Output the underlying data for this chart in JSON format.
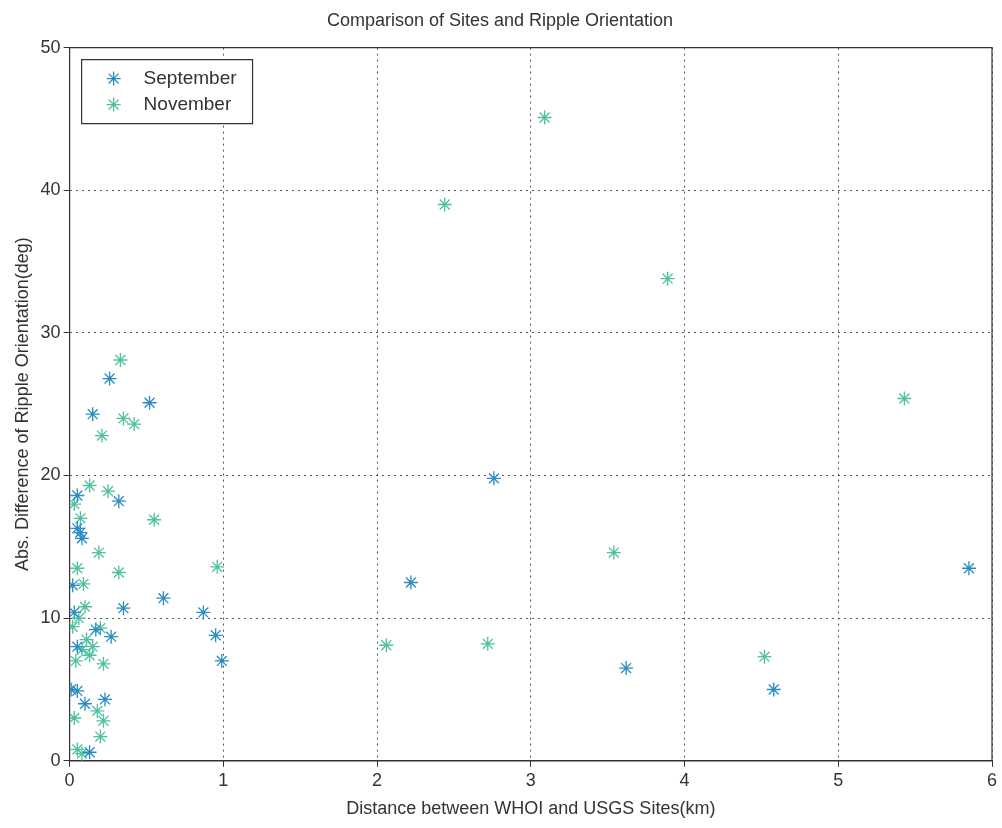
{
  "chart_data": {
    "type": "scatter",
    "title": "Comparison of Sites and Ripple Orientation",
    "xlabel": "Distance between WHOI and USGS Sites(km)",
    "ylabel": "Abs. Difference of Ripple Orientation(deg)",
    "xlim": [
      0,
      6
    ],
    "xticks": [
      0,
      1,
      2,
      3,
      4,
      5,
      6
    ],
    "ylim": [
      0,
      50
    ],
    "yticks": [
      0,
      10,
      20,
      30,
      40,
      50
    ],
    "grid": true,
    "legend": "top left",
    "marker": "cross",
    "series": [
      {
        "name": "September",
        "color": "#2a8cc0",
        "x": [
          0.15,
          0.26,
          0.52,
          0.05,
          0.32,
          0.08,
          0.05,
          0.02,
          0.61,
          0.35,
          0.87,
          0.95,
          0.99,
          2.22,
          2.76,
          3.62,
          4.58,
          5.85,
          0.27,
          0.17,
          0.1,
          0.23,
          0.01,
          0.05,
          0.13,
          0.05,
          0.03,
          0.07
        ],
        "values": [
          24.3,
          26.8,
          25.1,
          18.6,
          18.2,
          15.6,
          16.3,
          12.3,
          11.4,
          10.7,
          10.4,
          8.8,
          7.0,
          12.5,
          19.8,
          6.5,
          5.0,
          13.5,
          8.7,
          9.2,
          4.0,
          4.3,
          5.0,
          4.9,
          0.6,
          8.0,
          10.4,
          16.0
        ]
      },
      {
        "name": "November",
        "color": "#4fc0a0",
        "x": [
          2.44,
          3.09,
          3.89,
          5.43,
          3.54,
          4.52,
          2.06,
          2.72,
          0.96,
          0.55,
          0.33,
          0.35,
          0.42,
          0.21,
          0.13,
          0.25,
          0.19,
          0.32,
          0.05,
          0.09,
          0.07,
          0.03,
          0.1,
          0.06,
          0.02,
          0.08,
          0.13,
          0.04,
          0.2,
          0.22,
          0.18,
          0.22,
          0.2,
          0.03,
          0.05,
          0.08,
          0.11,
          0.15
        ],
        "values": [
          39.0,
          45.1,
          33.8,
          25.4,
          14.6,
          7.3,
          8.1,
          8.2,
          13.6,
          16.9,
          28.1,
          24.0,
          23.6,
          22.8,
          19.3,
          18.9,
          14.6,
          13.2,
          13.5,
          12.4,
          17.0,
          18.0,
          10.8,
          10.0,
          9.4,
          7.8,
          7.4,
          7.0,
          9.3,
          6.8,
          3.5,
          2.8,
          1.7,
          3.0,
          0.8,
          0.5,
          8.5,
          8.0
        ]
      }
    ]
  }
}
